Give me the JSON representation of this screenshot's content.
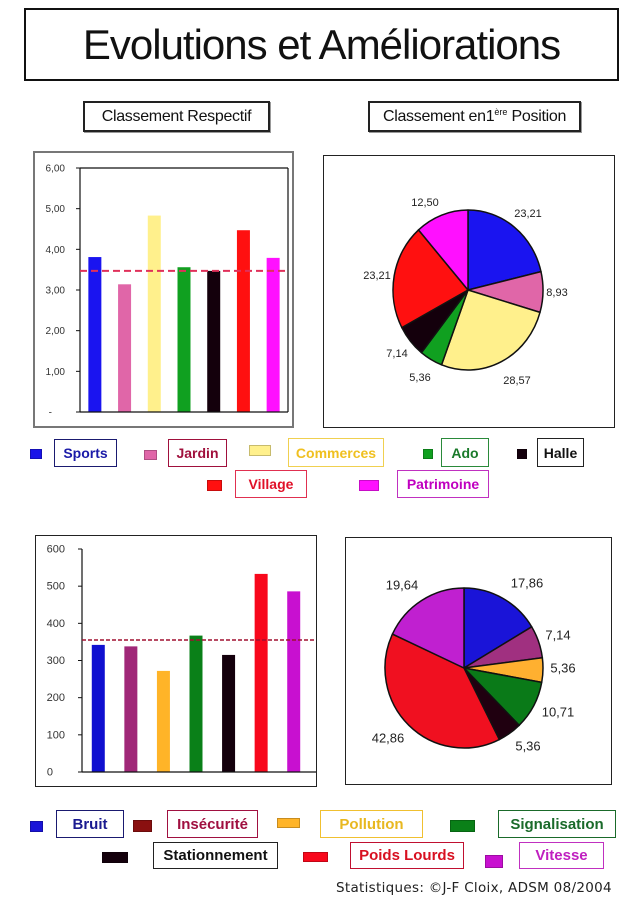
{
  "title": "Evolutions et Améliorations",
  "headings": {
    "left": "Classement Respectif",
    "right": {
      "prefix": "Classement en1",
      "sup": "ère",
      "suffix": " Position"
    }
  },
  "legend_top": [
    {
      "label": "Sports",
      "swatch_color": "#1a14e8",
      "text_color": "#1a1aa8",
      "border_color": "#1a1a70"
    },
    {
      "label": "Jardin",
      "swatch_color": "#e066a8",
      "text_color": "#a0103c",
      "border_color": "#a0103c"
    },
    {
      "label": "Commerces",
      "swatch_color": "#fff08c",
      "text_color": "#f0c020",
      "border_color": "#f0d050"
    },
    {
      "label": "Ado",
      "swatch_color": "#10a020",
      "text_color": "#1a7a2a",
      "border_color": "#2a8a3a"
    },
    {
      "label": "Halle",
      "swatch_color": "#14000c",
      "text_color": "#111111",
      "border_color": "#222222"
    },
    {
      "label": "Village",
      "swatch_color": "#ff1010",
      "text_color": "#e01028",
      "border_color": "#e03050"
    },
    {
      "label": "Patrimoine",
      "swatch_color": "#ff10ff",
      "text_color": "#c000c0",
      "border_color": "#c030c0"
    }
  ],
  "legend_bottom": [
    {
      "label": "Bruit",
      "swatch_color": "#1a14d8",
      "text_color": "#1a1a90",
      "border_color": "#1a1a70"
    },
    {
      "label": "Insécurité",
      "swatch_color": "#8a1010",
      "text_color": "#a01040",
      "border_color": "#a01040"
    },
    {
      "label": "Pollution",
      "swatch_color": "#ffb428",
      "text_color": "#e8b820",
      "border_color": "#f0c030"
    },
    {
      "label": "Signalisation",
      "swatch_color": "#0a8018",
      "text_color": "#1a6a2a",
      "border_color": "#1a6a2a"
    },
    {
      "label": "Stationnement",
      "swatch_color": "#14000c",
      "text_color": "#111111",
      "border_color": "#222222"
    },
    {
      "label": "Poids Lourds",
      "swatch_color": "#f8081c",
      "text_color": "#d81020",
      "border_color": "#c01030"
    },
    {
      "label": "Vitesse",
      "swatch_color": "#c810d0",
      "text_color": "#c020c0",
      "border_color": "#c030c0"
    }
  ],
  "chart_data": [
    {
      "type": "bar",
      "title": "Classement Respectif",
      "categories": [
        "Sports",
        "Jardin",
        "Commerces",
        "Ado",
        "Halle",
        "Village",
        "Patrimoine"
      ],
      "values": [
        3.81,
        3.14,
        4.83,
        3.56,
        3.47,
        4.47,
        3.79
      ],
      "colors": [
        "#1a14f0",
        "#e066a8",
        "#fff08c",
        "#10a020",
        "#14000c",
        "#ff1010",
        "#ff10ff"
      ],
      "xlabel": "",
      "ylabel": "",
      "ylim": [
        0,
        6
      ],
      "yticks": [
        0,
        1,
        2,
        3,
        4,
        5,
        6
      ],
      "ytick_labels": [
        "-",
        "1,00",
        "2,00",
        "3,00",
        "4,00",
        "5,00",
        "6,00"
      ],
      "reference_line": {
        "value": 3.47,
        "style": "dashed",
        "color": "#e0305a"
      },
      "grid": false,
      "legend_position": "bottom"
    },
    {
      "type": "pie",
      "title": "Classement en1ère Position",
      "categories": [
        "Sports",
        "Jardin",
        "Commerces",
        "Ado",
        "Halle",
        "Village",
        "Patrimoine"
      ],
      "values": [
        23.21,
        8.93,
        28.57,
        5.36,
        7.14,
        23.21,
        12.5
      ],
      "labels": [
        "23,21",
        "8,93",
        "28,57",
        "5,36",
        "7,14",
        "23,21",
        "12,50"
      ],
      "colors": [
        "#1a14f0",
        "#e066a8",
        "#fff08c",
        "#10a020",
        "#14000c",
        "#ff1010",
        "#ff10ff"
      ],
      "start_angle": 0,
      "direction": "clockwise",
      "legend_position": "bottom"
    },
    {
      "type": "bar",
      "title": "",
      "categories": [
        "Bruit",
        "Insécurité",
        "Pollution",
        "Signalisation",
        "Stationnement",
        "Poids Lourds",
        "Vitesse"
      ],
      "values": [
        342,
        338,
        272,
        367,
        315,
        533,
        486
      ],
      "colors": [
        "#1010d0",
        "#a02878",
        "#ffb428",
        "#0a8018",
        "#14000c",
        "#f8081c",
        "#c810d0"
      ],
      "xlabel": "",
      "ylabel": "",
      "ylim": [
        0,
        600
      ],
      "yticks": [
        0,
        100,
        200,
        300,
        400,
        500,
        600
      ],
      "ytick_labels": [
        "0",
        "100",
        "200",
        "300",
        "400",
        "500",
        "600"
      ],
      "reference_line": {
        "value": 355,
        "style": "dashed",
        "color": "#a01030"
      },
      "grid": false,
      "legend_position": "bottom"
    },
    {
      "type": "pie",
      "title": "",
      "categories": [
        "Bruit",
        "Insécurité",
        "Pollution",
        "Signalisation",
        "Stationnement",
        "Poids Lourds",
        "Vitesse"
      ],
      "values": [
        17.86,
        7.14,
        5.36,
        10.71,
        5.36,
        42.86,
        19.64
      ],
      "labels": [
        "17,86",
        "7,14",
        "5,36",
        "10,71",
        "5,36",
        "42,86",
        "19,64"
      ],
      "colors": [
        "#1a14d8",
        "#a03080",
        "#ffb030",
        "#0a7a18",
        "#200010",
        "#f01020",
        "#c020d0"
      ],
      "start_angle": 0,
      "direction": "clockwise",
      "legend_position": "bottom"
    }
  ],
  "footer": "Statistiques: ©J-F Cloix, ADSM 08/2004"
}
